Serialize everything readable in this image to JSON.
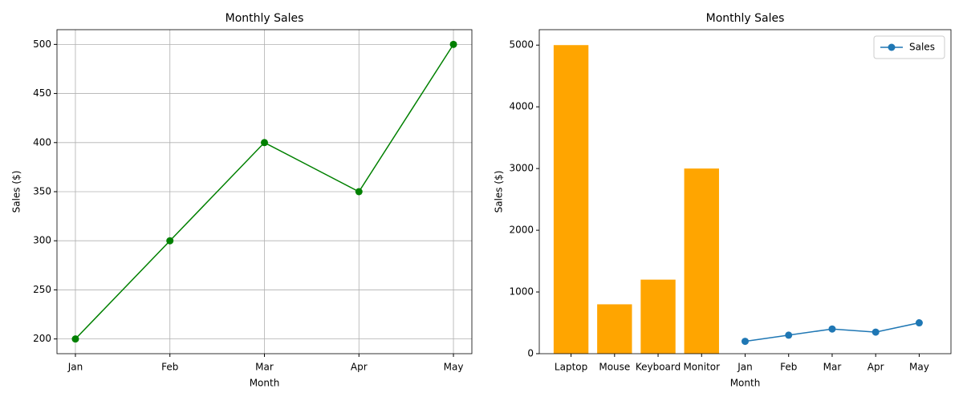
{
  "chart_data": [
    {
      "type": "line",
      "title": "Monthly Sales",
      "x_label": "Month",
      "y_label": "Sales ($)",
      "categories": [
        "Jan",
        "Feb",
        "Mar",
        "Apr",
        "May"
      ],
      "series": [
        {
          "name": "Sales",
          "color": "green",
          "values": [
            200,
            300,
            400,
            350,
            500
          ]
        }
      ],
      "ylim": [
        185,
        515
      ],
      "yticks": [
        200,
        250,
        300,
        350,
        400,
        450,
        500
      ],
      "grid": true,
      "legend": false
    },
    {
      "type": "combo",
      "title": "Monthly Sales",
      "x_label": "Month",
      "y_label": "Sales ($)",
      "categories": [
        "Laptop",
        "Mouse",
        "Keyboard",
        "Monitor",
        "Jan",
        "Feb",
        "Mar",
        "Apr",
        "May"
      ],
      "series": [
        {
          "type": "bar",
          "color": "orange",
          "values": [
            5000,
            800,
            1200,
            3000,
            null,
            null,
            null,
            null,
            null
          ]
        },
        {
          "type": "line",
          "name": "Sales",
          "color": "#1f77b4",
          "values": [
            null,
            null,
            null,
            null,
            200,
            300,
            400,
            350,
            500
          ]
        }
      ],
      "ylim": [
        0,
        5250
      ],
      "yticks": [
        0,
        1000,
        2000,
        3000,
        4000,
        5000
      ],
      "grid": false,
      "legend": "upper right"
    }
  ]
}
